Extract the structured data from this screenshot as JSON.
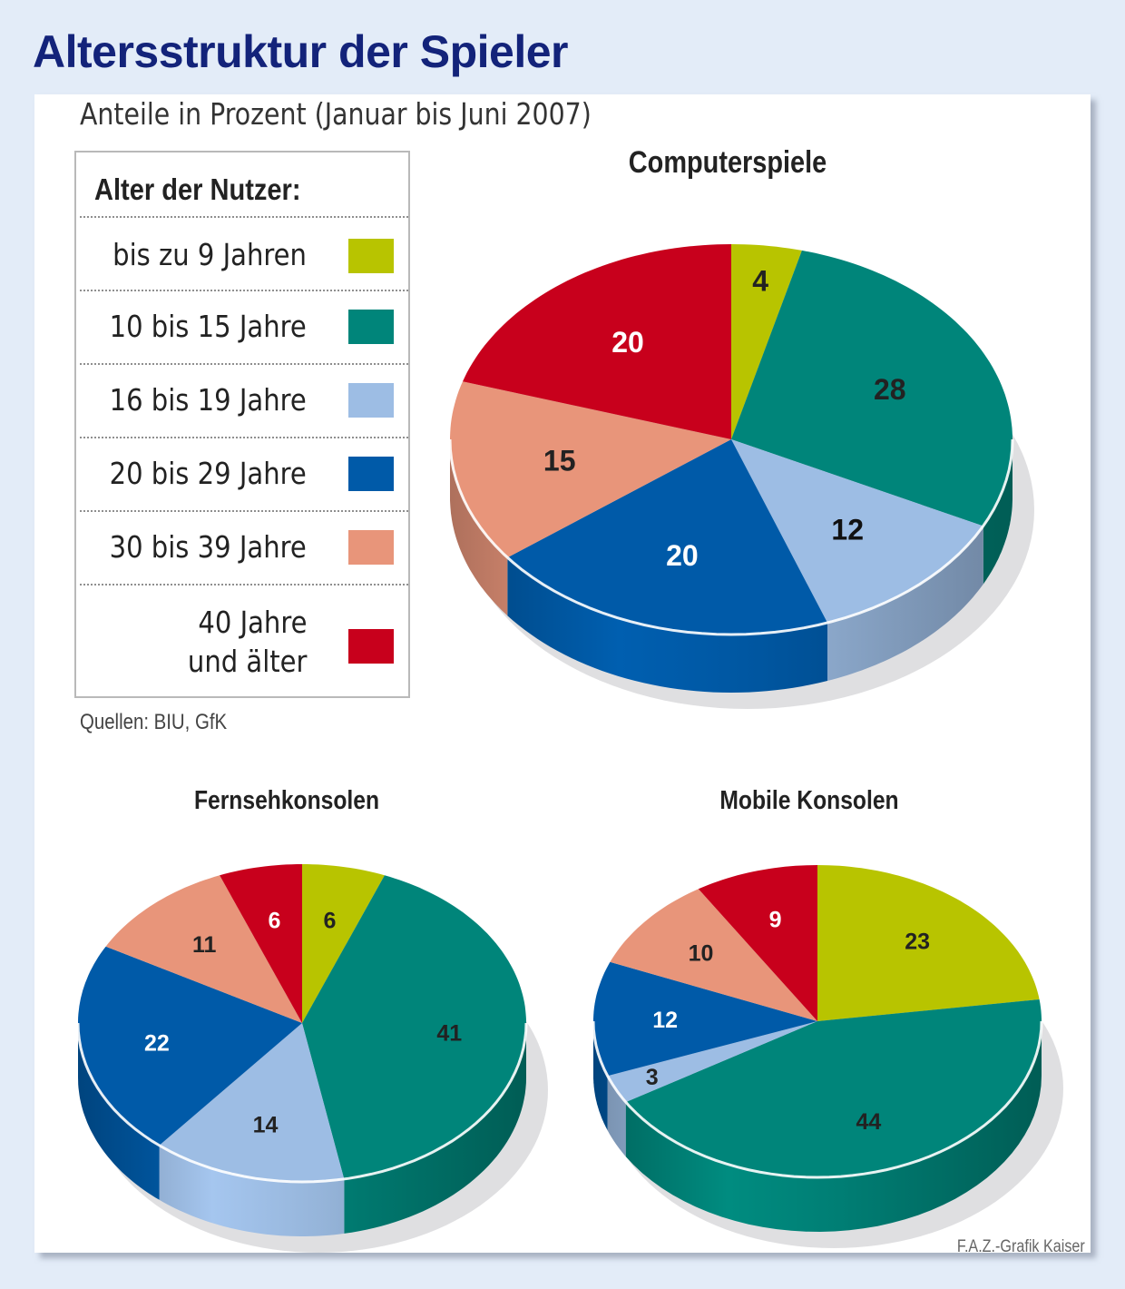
{
  "title": "Altersstruktur der Spieler",
  "subtitle": "Anteile in Prozent (Januar bis Juni 2007)",
  "legend": {
    "title": "Alter der Nutzer:",
    "items": [
      {
        "label": "bis zu 9 Jahren",
        "color": "#b8c400"
      },
      {
        "label": "10 bis 15 Jahre",
        "color": "#00857a"
      },
      {
        "label": "16 bis 19 Jahre",
        "color": "#9dbde4"
      },
      {
        "label": "20 bis 29 Jahre",
        "color": "#005aa8"
      },
      {
        "label": "30 bis 39 Jahre",
        "color": "#e8957a"
      },
      {
        "label": "40 Jahre und älter",
        "label_line1": "40 Jahre",
        "label_line2": "und älter",
        "color": "#c8001c"
      }
    ]
  },
  "source": "Quellen: BIU, GfK",
  "credit": "F.A.Z.-Grafik Kaiser",
  "chart_data": [
    {
      "type": "pie",
      "title": "Computerspiele",
      "categories": [
        "bis zu 9 Jahren",
        "10 bis 15 Jahre",
        "16 bis 19 Jahre",
        "20 bis 29 Jahre",
        "30 bis 39 Jahre",
        "40 Jahre und älter"
      ],
      "values": [
        4,
        28,
        12,
        20,
        15,
        20
      ],
      "labels": [
        "4",
        "28",
        "12",
        "20",
        "15",
        "20"
      ]
    },
    {
      "type": "pie",
      "title": "Fernsehkonsolen",
      "categories": [
        "bis zu 9 Jahren",
        "10 bis 15 Jahre",
        "16 bis 19 Jahre",
        "20 bis 29 Jahre",
        "30 bis 39 Jahre",
        "40 Jahre und älter"
      ],
      "values": [
        6,
        41,
        14,
        22,
        11,
        6
      ],
      "labels": [
        "6",
        "41",
        "14",
        "22",
        "11",
        "6"
      ]
    },
    {
      "type": "pie",
      "title": "Mobile Konsolen",
      "categories": [
        "bis zu 9 Jahren",
        "10 bis 15 Jahre",
        "16 bis 19 Jahre",
        "20 bis 29 Jahre",
        "30 bis 39 Jahre",
        "40 Jahre und älter"
      ],
      "values": [
        23,
        44,
        3,
        12,
        10,
        9
      ],
      "labels": [
        "23",
        "44",
        "3",
        "12",
        "10",
        "9"
      ]
    }
  ]
}
